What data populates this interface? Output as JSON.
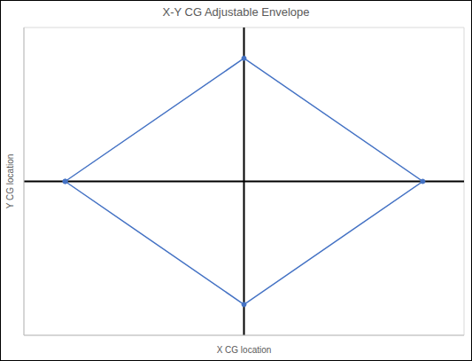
{
  "chart_data": {
    "type": "line",
    "title": "X-Y CG Adjustable Envelope",
    "x_label": "X CG location",
    "y_label": "Y CG location",
    "x": [
      -3.25,
      0,
      3.25,
      0,
      -3.25
    ],
    "values": [
      0,
      3.2,
      0,
      -3.2,
      0
    ],
    "color": "#4472c4",
    "marker": "circle",
    "xlim": [
      -4,
      4
    ],
    "xticks": [
      -4,
      -3,
      -2,
      -1,
      0,
      1,
      2,
      3,
      4
    ],
    "ylim": [
      -4,
      4
    ],
    "yticks": [
      -4,
      -3,
      -2,
      -1,
      0,
      1,
      2,
      3,
      4
    ],
    "grid": true,
    "tick_labels": false
  }
}
